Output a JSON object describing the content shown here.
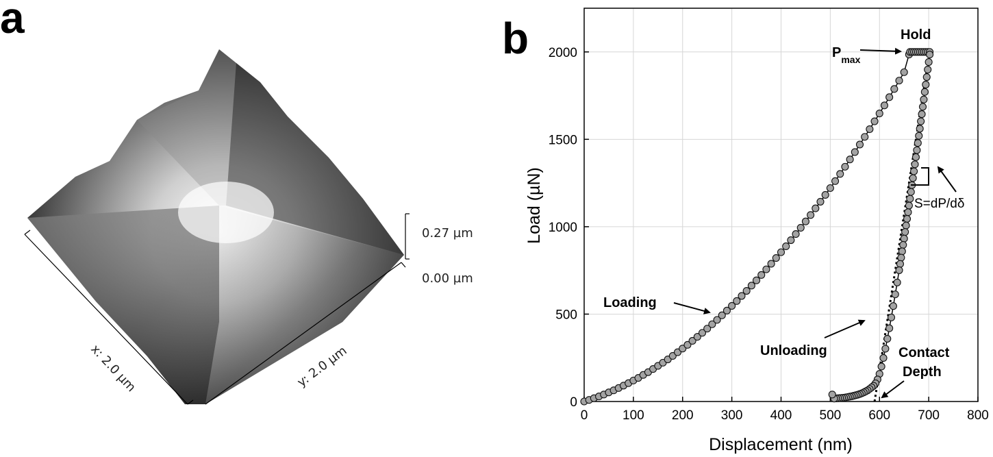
{
  "panel_a": {
    "letter": "a",
    "z_labels": [
      "0.27 µm",
      "0.00 µm"
    ],
    "x_label": "x: 2.0 µm",
    "y_label": "y: 2.0 µm"
  },
  "panel_b": {
    "letter": "b",
    "annotations": {
      "hold": "Hold",
      "pmax_main": "P",
      "pmax_sub": "max",
      "stiffness": "S=dP/dδ",
      "loading": "Loading",
      "unloading": "Unloading",
      "contact_line1": "Contact",
      "contact_line2": "Depth"
    }
  },
  "chart_data": [
    {
      "type": "surface",
      "panel": "a",
      "x_range_um": 2.0,
      "y_range_um": 2.0,
      "z_range_um": [
        0.0,
        0.27
      ],
      "colormap": "grayscale"
    },
    {
      "type": "line",
      "panel": "b",
      "title": "",
      "xlabel": "Displacement (nm)",
      "ylabel": "Load (µN)",
      "xlim": [
        0,
        800
      ],
      "ylim": [
        0,
        2250
      ],
      "xticks": [
        0,
        100,
        200,
        300,
        400,
        500,
        600,
        700,
        800
      ],
      "yticks": [
        0,
        500,
        1000,
        1500,
        2000
      ],
      "grid": true,
      "loading_curve": {
        "x": [
          0,
          10,
          20,
          30,
          40,
          50,
          60,
          70,
          80,
          90,
          100,
          110,
          120,
          130,
          140,
          150,
          160,
          170,
          180,
          190,
          200,
          210,
          220,
          230,
          240,
          250,
          260,
          270,
          280,
          290,
          300,
          310,
          320,
          330,
          340,
          350,
          360,
          370,
          380,
          390,
          400,
          410,
          420,
          430,
          440,
          450,
          460,
          470,
          480,
          490,
          500,
          510,
          520,
          530,
          540,
          550,
          560,
          570,
          580,
          590,
          600,
          610,
          620,
          630,
          640,
          650,
          660
        ],
        "y": [
          0,
          9,
          19,
          29,
          40,
          52,
          64,
          77,
          91,
          105,
          120,
          135,
          152,
          168,
          186,
          204,
          222,
          241,
          261,
          282,
          303,
          324,
          347,
          370,
          393,
          417,
          442,
          467,
          493,
          520,
          547,
          575,
          604,
          633,
          663,
          693,
          724,
          756,
          788,
          821,
          854,
          888,
          923,
          958,
          994,
          1030,
          1067,
          1105,
          1143,
          1182,
          1221,
          1261,
          1302,
          1343,
          1385,
          1427,
          1470,
          1514,
          1558,
          1603,
          1648,
          1694,
          1741,
          1788,
          1836,
          1884,
          1985
        ]
      },
      "hold_segment": {
        "x": [
          662,
          666,
          670,
          674,
          678,
          682,
          686,
          690,
          694,
          698,
          702
        ],
        "y": [
          2000,
          2000,
          2000,
          2000,
          2000,
          2000,
          2000,
          2000,
          2000,
          2000,
          2000
        ]
      },
      "unloading_curve": {
        "x": [
          702,
          700,
          698,
          696,
          694,
          692,
          690,
          688,
          686,
          684,
          682,
          680,
          678,
          676,
          674,
          672,
          670,
          668,
          666,
          664,
          662,
          660,
          658,
          656,
          654,
          652,
          650,
          648,
          646,
          644,
          642,
          640,
          636,
          632,
          628,
          624,
          620,
          616,
          612,
          608,
          604,
          600,
          596,
          592,
          588,
          584,
          580,
          576,
          572,
          568,
          564,
          560,
          556,
          552,
          548,
          544,
          540,
          536,
          532,
          528,
          524,
          520,
          516,
          512,
          508,
          504
        ],
        "y": [
          1985,
          1942,
          1899,
          1856,
          1813,
          1771,
          1728,
          1686,
          1644,
          1603,
          1561,
          1520,
          1479,
          1438,
          1398,
          1357,
          1317,
          1278,
          1238,
          1199,
          1160,
          1121,
          1083,
          1045,
          1007,
          970,
          932,
          896,
          859,
          823,
          787,
          751,
          681,
          613,
          546,
          481,
          419,
          359,
          302,
          249,
          200,
          158,
          126,
          104,
          90,
          81,
          72,
          64,
          58,
          52,
          47,
          43,
          39,
          36,
          33,
          30,
          28,
          26,
          24,
          22,
          21,
          20,
          19,
          18,
          17,
          40
        ]
      },
      "tangent_line": {
        "x": [
          590,
          702
        ],
        "y": [
          0,
          2000
        ]
      }
    }
  ]
}
